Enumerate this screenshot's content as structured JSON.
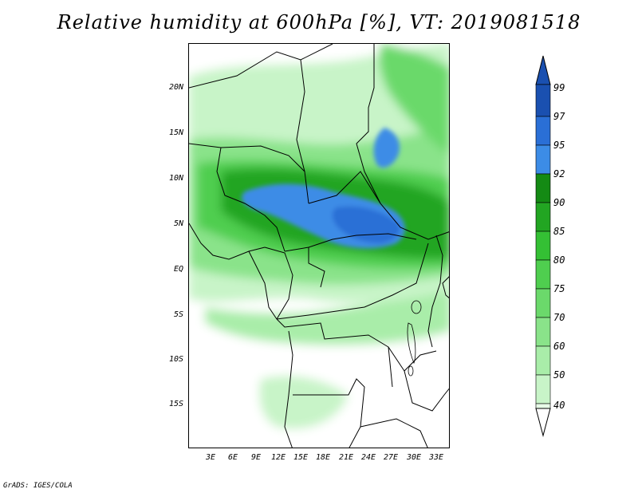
{
  "title": "Relative humidity at 600hPa [%], VT: 2019081518",
  "credit": "GrADS: IGES/COLA",
  "map": {
    "lat_ticks": [
      "20N",
      "15N",
      "10N",
      "5N",
      "EQ",
      "5S",
      "10S",
      "15S"
    ],
    "lon_ticks": [
      "3E",
      "6E",
      "9E",
      "12E",
      "15E",
      "18E",
      "21E",
      "24E",
      "27E",
      "30E",
      "33E"
    ]
  },
  "colorbar": {
    "levels": [
      "40",
      "50",
      "60",
      "70",
      "75",
      "80",
      "85",
      "90",
      "92",
      "95",
      "97",
      "99"
    ],
    "colors": {
      "40-50": "#e7fbe7",
      "50-60": "#c8f4c8",
      "60-70": "#a9eda9",
      "70-75": "#8ae38a",
      "75-80": "#6bd96b",
      "80-85": "#4fce4f",
      "85-90": "#34c034",
      "90-92": "#22a522",
      "92-95": "#148a14",
      "95-97": "#3c8ce6",
      "97-99": "#2a6fd6",
      "99+": "#1a50b0"
    }
  }
}
